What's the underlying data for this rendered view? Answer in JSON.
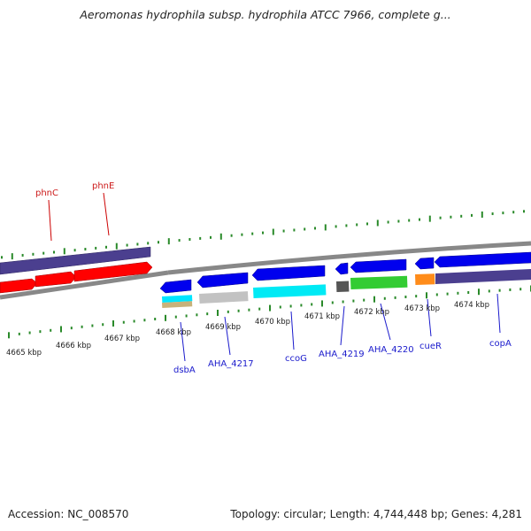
{
  "title": "Aeromonas hydrophila subsp. hydrophila ATCC 7966, complete g...",
  "footer": {
    "accession": "Accession: NC_008570",
    "topology": "Topology: circular; Length: 4,744,448 bp; Genes: 4,281"
  },
  "colors": {
    "backbone": "#8a8a8a",
    "tick": "#2a8a2a",
    "label_blue": "#1a1acc",
    "label_red": "#cc1a1a"
  },
  "ruler": [
    {
      "label": "4665 kbp"
    },
    {
      "label": "4666 kbp"
    },
    {
      "label": "4667 kbp"
    },
    {
      "label": "4668 kbp"
    },
    {
      "label": "4669 kbp"
    },
    {
      "label": "4670 kbp"
    },
    {
      "label": "4671 kbp"
    },
    {
      "label": "4672 kbp"
    },
    {
      "label": "4673 kbp"
    },
    {
      "label": "4674 kbp"
    }
  ],
  "genes": [
    {
      "name": "phnC",
      "color": "red"
    },
    {
      "name": "phnE",
      "color": "red"
    },
    {
      "name": "dsbA",
      "color": "blue"
    },
    {
      "name": "AHA_4217",
      "color": "blue"
    },
    {
      "name": "ccoG",
      "color": "blue"
    },
    {
      "name": "AHA_4219",
      "color": "blue"
    },
    {
      "name": "AHA_4220",
      "color": "blue"
    },
    {
      "name": "cueR",
      "color": "blue"
    },
    {
      "name": "copA",
      "color": "blue"
    }
  ]
}
